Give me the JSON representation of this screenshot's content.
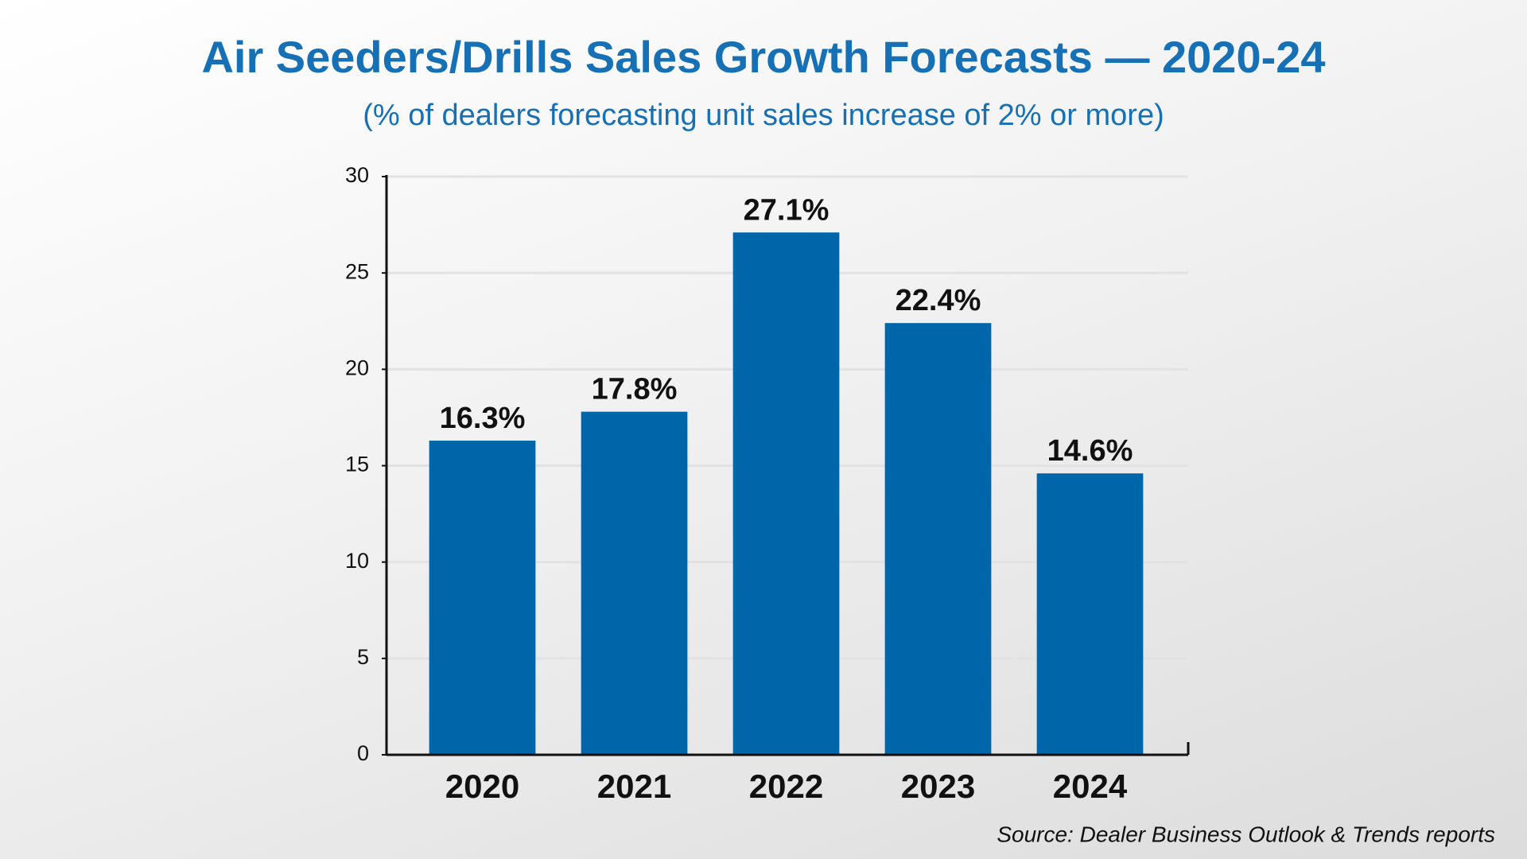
{
  "chart_data": {
    "type": "bar",
    "title": "Air Seeders/Drills Sales Growth Forecasts — 2020-24",
    "subtitle": "(% of dealers forecasting unit sales increase of 2% or more)",
    "source": "Source: Dealer Business Outlook & Trends reports",
    "categories": [
      "2020",
      "2021",
      "2022",
      "2023",
      "2024"
    ],
    "values": [
      16.3,
      17.8,
      27.1,
      22.4,
      14.6
    ],
    "value_labels": [
      "16.3%",
      "17.8%",
      "27.1%",
      "22.4%",
      "14.6%"
    ],
    "color": "#0066aa",
    "ylim": [
      0,
      30
    ],
    "yticks": [
      0,
      5,
      10,
      15,
      20,
      25,
      30
    ],
    "grid": true
  }
}
